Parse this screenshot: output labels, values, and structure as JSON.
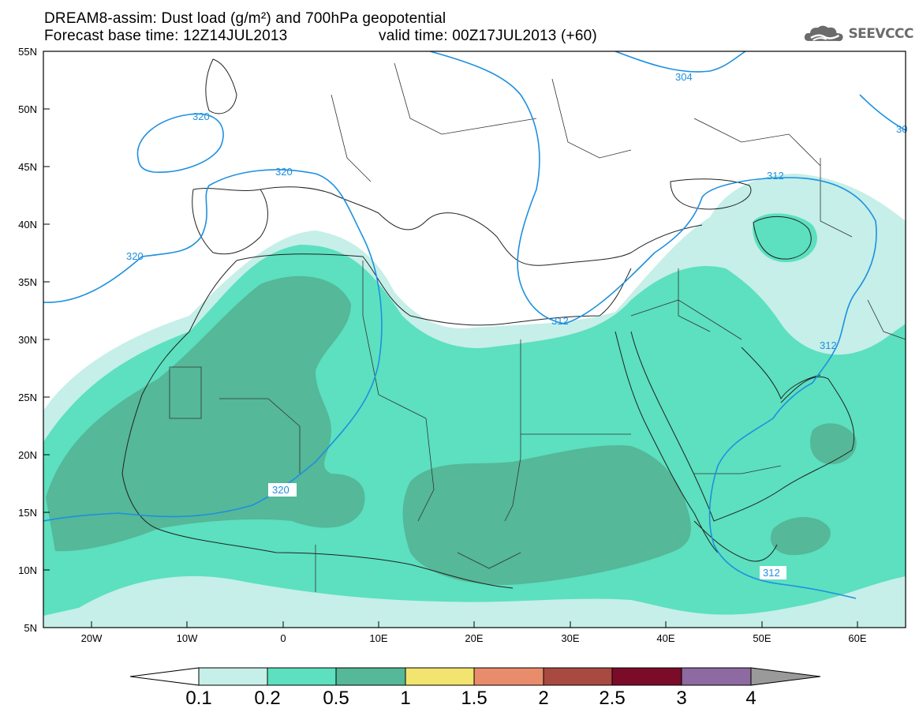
{
  "header": {
    "line1": "DREAM8-assim: Dust load (g/m²) and 700hPa geopotential",
    "line2_left": "Forecast base time: 12Z14JUL2013",
    "line2_right": "valid time: 00Z17JUL2013 (+60)"
  },
  "logo": {
    "text": "SEEVCCC",
    "icon": "cloud-logo-icon"
  },
  "map": {
    "lat_labels": [
      "55N",
      "50N",
      "45N",
      "40N",
      "35N",
      "30N",
      "25N",
      "20N",
      "15N",
      "10N",
      "5N"
    ],
    "lon_labels": [
      "20W",
      "10W",
      "0",
      "10E",
      "20E",
      "30E",
      "40E",
      "50E",
      "60E"
    ],
    "contour_labels": [
      "304",
      "320",
      "320",
      "320",
      "320",
      "312",
      "312",
      "312",
      "312",
      "30"
    ]
  },
  "legend": {
    "values": [
      "0.1",
      "0.2",
      "0.5",
      "1",
      "1.5",
      "2",
      "2.5",
      "3",
      "4"
    ],
    "colors": [
      "#ffffff",
      "#c5efe8",
      "#5ce0bf",
      "#55b898",
      "#f2e46e",
      "#e98c6b",
      "#a84a40",
      "#7a0c2a",
      "#8d6aa1",
      "#9a9a9a"
    ]
  },
  "colors": {
    "dust_low": "#c5efe8",
    "dust_mid": "#5ce0bf",
    "dust_high": "#55b898",
    "contour": "#1e90e0"
  }
}
